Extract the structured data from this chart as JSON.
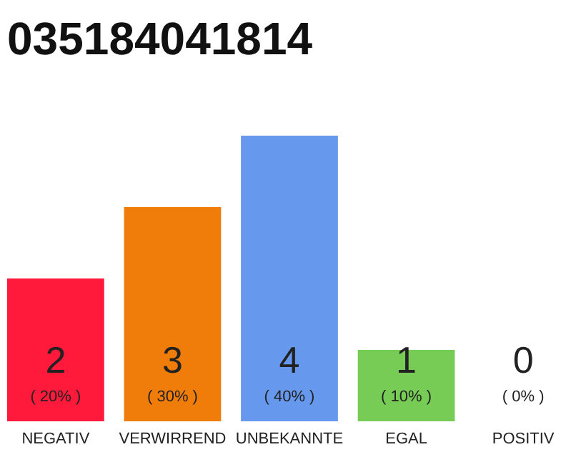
{
  "chart_data": {
    "type": "bar",
    "title": "035184041814",
    "categories": [
      "NEGATIV",
      "VERWIRREND",
      "UNBEKANNTE",
      "EGAL",
      "POSITIV"
    ],
    "values": [
      20,
      30,
      40,
      10,
      0
    ],
    "colors": [
      "#ff1a3c",
      "#f07d0a",
      "#6699ee",
      "#77cc55",
      "#aaaaaa"
    ],
    "value_labels": [
      "( 20% )",
      "( 30% )",
      "( 40% )",
      "( 10% )",
      "( 0% )"
    ],
    "annotations": [
      "2",
      "3",
      "4",
      "1",
      "0"
    ]
  }
}
